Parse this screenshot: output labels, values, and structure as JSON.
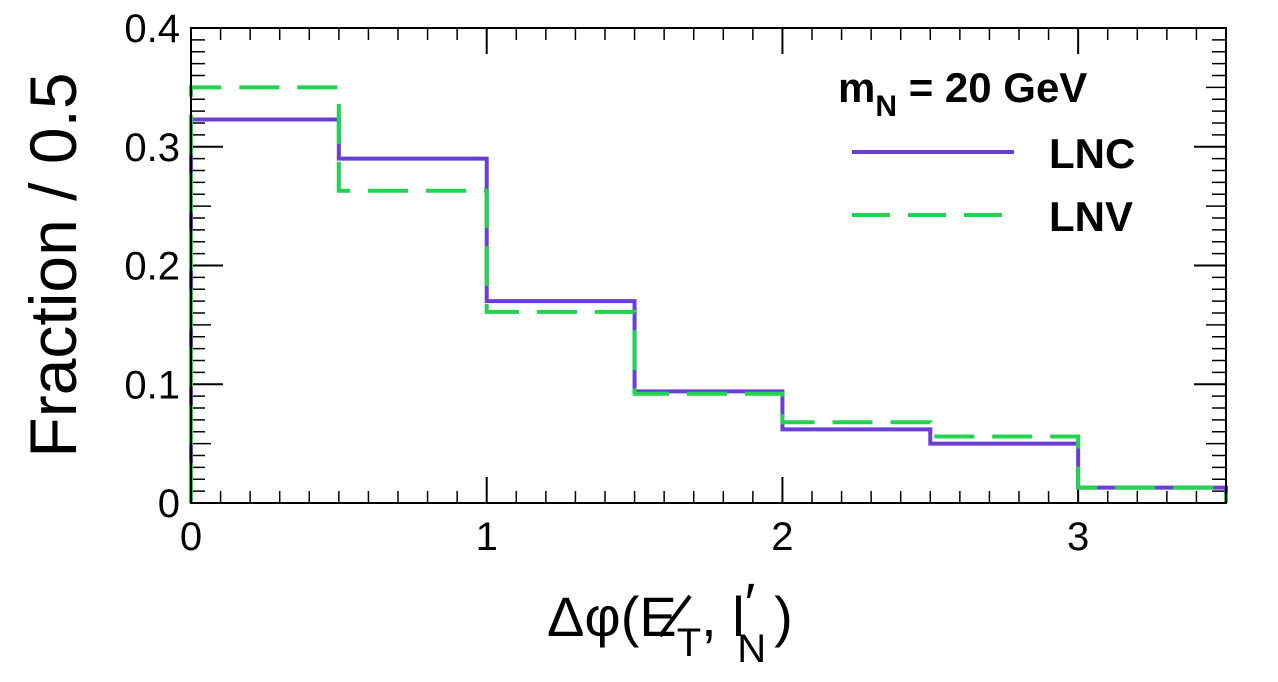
{
  "chart_data": {
    "type": "step-histogram",
    "bin_edges": [
      0,
      0.5,
      1,
      1.5,
      2,
      2.5,
      3,
      3.5
    ],
    "series": [
      {
        "name": "LNC",
        "values": [
          0.323,
          0.29,
          0.17,
          0.094,
          0.062,
          0.05,
          0.013
        ],
        "color": "#6a3fd6",
        "dash": "solid"
      },
      {
        "name": "LNV",
        "values": [
          0.35,
          0.263,
          0.161,
          0.092,
          0.068,
          0.056,
          0.013
        ],
        "color": "#22d34f",
        "dash": "dashed"
      }
    ],
    "xlim": [
      0,
      3.5
    ],
    "ylim": [
      0,
      0.4
    ],
    "x_ticks": [
      {
        "value": 0,
        "label": "0"
      },
      {
        "value": 1,
        "label": "1"
      },
      {
        "value": 2,
        "label": "2"
      },
      {
        "value": 3,
        "label": "3"
      }
    ],
    "y_ticks": [
      {
        "value": 0,
        "label": "0"
      },
      {
        "value": 0.1,
        "label": "0.1"
      },
      {
        "value": 0.2,
        "label": "0.2"
      },
      {
        "value": 0.3,
        "label": "0.3"
      },
      {
        "value": 0.4,
        "label": "0.4"
      }
    ],
    "ylabel": "Fraction / 0.5",
    "xlabel": {
      "delta_phi": "Δφ(",
      "met_symbol": "E",
      "met_sub": "T",
      "separator": ", l",
      "prime": "′",
      "lep_sub": "N",
      "close": ")"
    },
    "legend": {
      "placement": "top-right",
      "header_main": "m",
      "header_sub": "N",
      "header_rest": " = 20 GeV"
    }
  }
}
